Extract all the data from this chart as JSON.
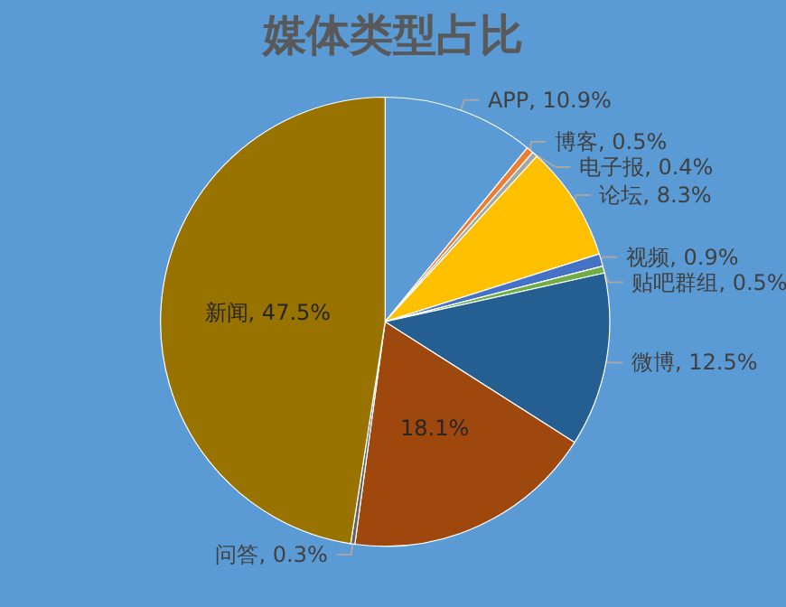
{
  "chart_data": {
    "type": "pie",
    "title": "媒体类型占比",
    "categories": [
      "APP",
      "博客",
      "电子报",
      "论坛",
      "视频",
      "贴吧群组",
      "微博",
      null,
      "问答",
      "新闻"
    ],
    "values": [
      10.9,
      0.5,
      0.4,
      8.3,
      0.9,
      0.5,
      12.5,
      18.1,
      0.3,
      47.5
    ],
    "value_labels": [
      "10.9%",
      "0.5%",
      "0.4%",
      "8.3%",
      "0.9%",
      "0.5%",
      "12.5%",
      "18.1%",
      "0.3%",
      "47.5%"
    ],
    "colors": [
      "#5b9bd5",
      "#ed7d31",
      "#a5a5a5",
      "#ffc000",
      "#4472c4",
      "#70ad47",
      "#255e91",
      "#9e480e",
      "#636363",
      "#997300"
    ],
    "legend": false
  }
}
